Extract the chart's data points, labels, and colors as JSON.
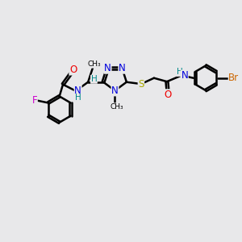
{
  "bg_color": "#e8e8ea",
  "bond_color": "#000000",
  "bond_width": 1.8,
  "atom_colors": {
    "N": "#0000dd",
    "O": "#ee0000",
    "S": "#aaaa00",
    "F": "#cc00cc",
    "Br": "#cc6600",
    "C": "#000000",
    "H": "#008888"
  },
  "font_size": 8.5,
  "fig_size": [
    3.0,
    3.0
  ],
  "dpi": 100
}
